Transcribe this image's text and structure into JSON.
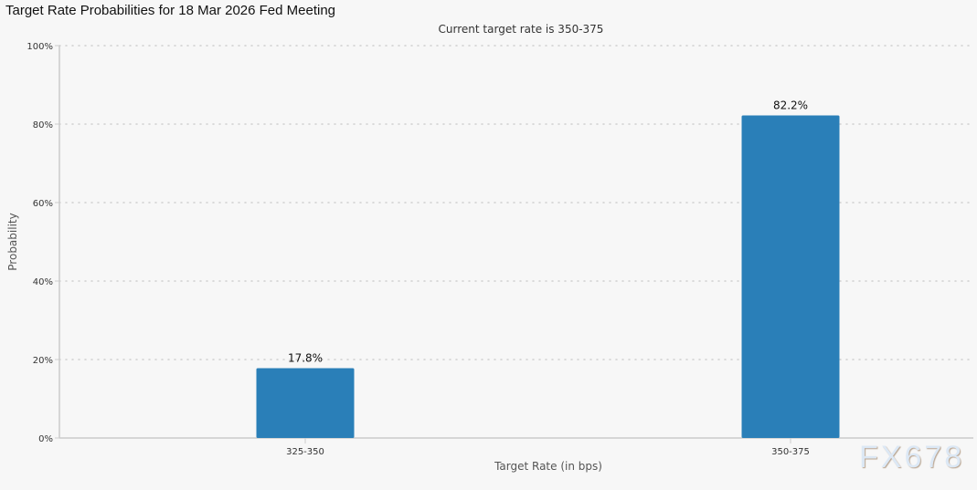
{
  "chart_data": {
    "type": "bar",
    "title": "Target Rate Probabilities for 18 Mar 2026 Fed Meeting",
    "subtitle": "Current target rate is 350-375",
    "xlabel": "Target Rate (in bps)",
    "ylabel": "Probability",
    "categories": [
      "325-350",
      "350-375"
    ],
    "values": [
      17.8,
      82.2
    ],
    "data_labels": [
      "17.8%",
      "82.2%"
    ],
    "ylim": [
      0,
      100
    ],
    "yticks": [
      "0%",
      "20%",
      "40%",
      "60%",
      "80%",
      "100%"
    ],
    "grid": true,
    "bar_color": "#2a7fb8"
  },
  "watermark": "FX678"
}
